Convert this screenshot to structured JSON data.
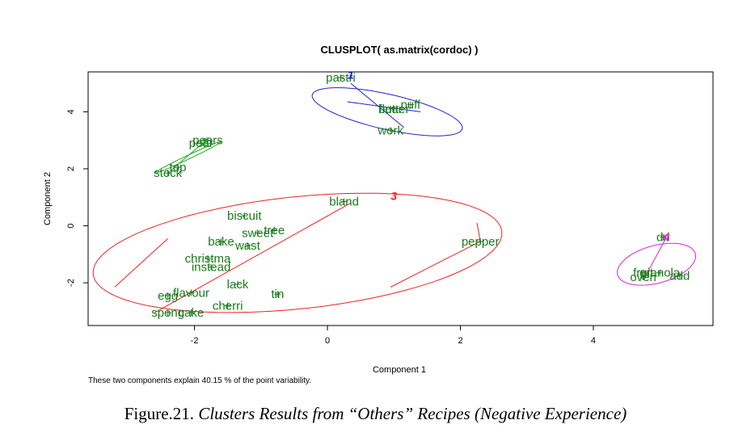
{
  "chart_data": {
    "type": "scatter",
    "title": "CLUSPLOT( as.matrix(cordoc) )",
    "xlabel": "Component 1",
    "ylabel": "Component 2",
    "xlim": [
      -3.6,
      5.8
    ],
    "ylim": [
      -3.5,
      5.4
    ],
    "x_ticks": [
      -2,
      0,
      2,
      4
    ],
    "y_ticks": [
      -2,
      0,
      2,
      4
    ],
    "grid": false,
    "footnote": "These two components explain 40.15 % of the point variability.",
    "points": [
      {
        "label": "pastri",
        "x": 0.2,
        "y": 5.2,
        "cluster": 1
      },
      {
        "label": "puff",
        "x": 1.25,
        "y": 4.25,
        "cluster": 1
      },
      {
        "label": "flour",
        "x": 0.95,
        "y": 4.1,
        "cluster": 1
      },
      {
        "label": "butter",
        "x": 1.0,
        "y": 4.1,
        "cluster": 1
      },
      {
        "label": "work",
        "x": 0.95,
        "y": 3.35,
        "cluster": 1
      },
      {
        "label": "pears",
        "x": -1.8,
        "y": 3.0,
        "cluster": 2
      },
      {
        "label": "pear",
        "x": -1.9,
        "y": 2.9,
        "cluster": 2
      },
      {
        "label": "top",
        "x": -2.25,
        "y": 2.05,
        "cluster": 2
      },
      {
        "label": "stock",
        "x": -2.4,
        "y": 1.85,
        "cluster": 2
      },
      {
        "label": "bland",
        "x": 0.25,
        "y": 0.85,
        "cluster": 3
      },
      {
        "label": "biscuit",
        "x": -1.25,
        "y": 0.35,
        "cluster": 3
      },
      {
        "label": "tree",
        "x": -0.8,
        "y": -0.15,
        "cluster": 3
      },
      {
        "label": "sweet",
        "x": -1.05,
        "y": -0.25,
        "cluster": 3
      },
      {
        "label": "bake",
        "x": -1.6,
        "y": -0.55,
        "cluster": 3
      },
      {
        "label": "wast",
        "x": -1.2,
        "y": -0.7,
        "cluster": 3
      },
      {
        "label": "pepper",
        "x": 2.3,
        "y": -0.55,
        "cluster": 3
      },
      {
        "label": "christma",
        "x": -1.8,
        "y": -1.15,
        "cluster": 3
      },
      {
        "label": "instead",
        "x": -1.75,
        "y": -1.45,
        "cluster": 3
      },
      {
        "label": "lack",
        "x": -1.35,
        "y": -2.05,
        "cluster": 3
      },
      {
        "label": "flavour",
        "x": -2.05,
        "y": -2.35,
        "cluster": 3
      },
      {
        "label": "egg",
        "x": -2.4,
        "y": -2.45,
        "cluster": 3
      },
      {
        "label": "tin",
        "x": -0.75,
        "y": -2.4,
        "cluster": 3
      },
      {
        "label": "cherri",
        "x": -1.5,
        "y": -2.8,
        "cluster": 3
      },
      {
        "label": "spong",
        "x": -2.4,
        "y": -3.05,
        "cluster": 3
      },
      {
        "label": "cake",
        "x": -2.05,
        "y": -3.05,
        "cluster": 3
      },
      {
        "label": "dri",
        "x": 5.05,
        "y": -0.4,
        "cluster": 4
      },
      {
        "label": "fruit",
        "x": 4.75,
        "y": -1.65,
        "cluster": 4
      },
      {
        "label": "granola",
        "x": 5.0,
        "y": -1.65,
        "cluster": 4
      },
      {
        "label": "oven",
        "x": 4.75,
        "y": -1.8,
        "cluster": 4
      },
      {
        "label": "add",
        "x": 5.3,
        "y": -1.75,
        "cluster": 4
      }
    ],
    "clusters": [
      {
        "id": 1,
        "color": "#2222cc",
        "label": "1",
        "label_x": 0.35,
        "label_y": 5.3,
        "center_x": 0.9,
        "center_y": 4.0,
        "semi_a": 1.3,
        "semi_b": 0.55,
        "angle_deg": -33
      },
      {
        "id": 2,
        "color": "#22aa22",
        "label": "2",
        "label_x": -1.85,
        "label_y": 2.95,
        "center_x": -2.1,
        "center_y": 2.4,
        "semi_a": 0.75,
        "semi_b": 0.05,
        "angle_deg": 48
      },
      {
        "id": 3,
        "color": "#ee2222",
        "label": "3",
        "label_x": 1.0,
        "label_y": 1.05,
        "center_x": -0.45,
        "center_y": -0.95,
        "semi_a": 3.2,
        "semi_b": 1.9,
        "angle_deg": 20
      },
      {
        "id": 4,
        "color": "#dd22dd",
        "label": "4",
        "label_x": 5.1,
        "label_y": -0.4,
        "center_x": 4.95,
        "center_y": -1.35,
        "semi_a": 0.8,
        "semi_b": 0.5,
        "angle_deg": 60
      }
    ],
    "lines": [
      {
        "color": "#22aa22",
        "x1": -2.4,
        "y1": 1.85,
        "x2": -1.85,
        "y2": 2.95
      },
      {
        "color": "#2222cc",
        "x1": 0.35,
        "y1": 5.0,
        "x2": 1.15,
        "y2": 3.45
      },
      {
        "color": "#2222cc",
        "x1": 0.3,
        "y1": 4.35,
        "x2": 1.4,
        "y2": 4.0
      },
      {
        "color": "#ee2222",
        "x1": -2.6,
        "y1": -3.05,
        "x2": 0.35,
        "y2": 0.8
      },
      {
        "color": "#ee2222",
        "x1": -2.4,
        "y1": -0.45,
        "x2": -3.2,
        "y2": -2.15
      },
      {
        "color": "#ee2222",
        "x1": 0.95,
        "y1": -2.15,
        "x2": 2.3,
        "y2": -0.55
      },
      {
        "color": "#ee2222",
        "x1": 2.3,
        "y1": -0.55,
        "x2": 2.25,
        "y2": 0.1
      },
      {
        "color": "#dd22dd",
        "x1": 4.8,
        "y1": -1.7,
        "x2": 5.1,
        "y2": -0.4
      }
    ]
  },
  "caption": {
    "prefix": "Figure.21. ",
    "italic": "Clusters Results from “Others” Recipes (Negative Experience)"
  }
}
